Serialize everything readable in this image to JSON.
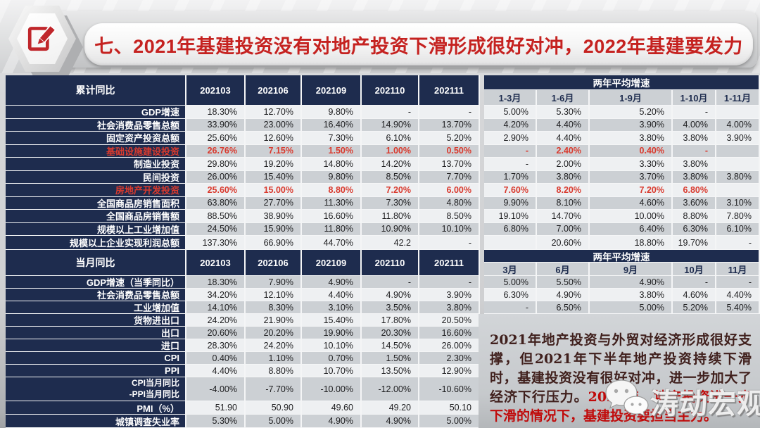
{
  "title": {
    "text": "七、2021年基建投资没有对地产投资下滑形成很好对冲，2022年基建要发力"
  },
  "colors": {
    "navy_header": "#1e2c4e",
    "row_light": "#eef0f2",
    "row_gray": "#ccd0d4",
    "highlight_red": "#d93a2e",
    "title_red": "#c52220",
    "note_dark_red": "#40201d",
    "note_bright_red": "#c00b0b"
  },
  "table_cumulative": {
    "label_header": "累计同比",
    "col_headers": [
      "202103",
      "202106",
      "202109",
      "202110",
      "202111"
    ],
    "right_group_header": "两年平均增速",
    "right_col_headers": [
      "1-3月",
      "1-6月",
      "1-9月",
      "1-10月",
      "1-11月"
    ],
    "rows": [
      {
        "label": "GDP增速",
        "red": false,
        "left": [
          "18.30%",
          "12.70%",
          "9.80%",
          "-",
          "-"
        ],
        "right": [
          "5.00%",
          "5.30%",
          "5.20%",
          "-",
          ""
        ]
      },
      {
        "label": "社会消费品零售总额",
        "red": false,
        "left": [
          "33.90%",
          "23.00%",
          "16.40%",
          "14.90%",
          "13.70%"
        ],
        "right": [
          "4.20%",
          "4.40%",
          "3.90%",
          "4.00%",
          "4.00%"
        ]
      },
      {
        "label": "固定资产投资总额",
        "red": false,
        "left": [
          "25.60%",
          "12.60%",
          "7.30%",
          "6.10%",
          "5.20%"
        ],
        "right": [
          "2.90%",
          "4.40%",
          "3.80%",
          "3.80%",
          "3.90%"
        ]
      },
      {
        "label": "基础设施建设投资",
        "red": true,
        "left": [
          "26.76%",
          "7.15%",
          "1.50%",
          "1.00%",
          "0.50%"
        ],
        "right": [
          "-",
          "2.40%",
          "0.40%",
          "-",
          ""
        ]
      },
      {
        "label": "制造业投资",
        "red": false,
        "left": [
          "29.80%",
          "19.20%",
          "14.80%",
          "14.20%",
          "13.70%"
        ],
        "right": [
          "-",
          "2.00%",
          "3.30%",
          "3.80%",
          ""
        ]
      },
      {
        "label": "民间投资",
        "red": false,
        "left": [
          "26.00%",
          "15.40%",
          "9.80%",
          "8.50%",
          "7.70%"
        ],
        "right": [
          "1.70%",
          "3.80%",
          "3.70%",
          "3.80%",
          "3.80%"
        ]
      },
      {
        "label": "房地产开发投资",
        "red": true,
        "left": [
          "25.60%",
          "15.00%",
          "8.80%",
          "7.20%",
          "6.00%"
        ],
        "right": [
          "7.60%",
          "8.20%",
          "7.20%",
          "6.80%",
          ""
        ]
      },
      {
        "label": "全国商品房销售面积",
        "red": false,
        "left": [
          "63.80%",
          "27.70%",
          "11.30%",
          "7.30%",
          "4.80%"
        ],
        "right": [
          "9.90%",
          "8.10%",
          "4.60%",
          "3.60%",
          "3.10%"
        ]
      },
      {
        "label": "全国商品房销售额",
        "red": false,
        "left": [
          "88.50%",
          "38.90%",
          "16.60%",
          "11.80%",
          "8.50%"
        ],
        "right": [
          "19.10%",
          "14.70%",
          "10.00%",
          "8.80%",
          "7.80%"
        ]
      },
      {
        "label": "规模以上工业增加值",
        "red": false,
        "left": [
          "24.50%",
          "15.90%",
          "11.80%",
          "10.90%",
          "10.10%"
        ],
        "right": [
          "6.80%",
          "7.00%",
          "6.40%",
          "6.30%",
          "6.10%"
        ]
      },
      {
        "label": "规模以上企业实现利润总额",
        "red": false,
        "left": [
          "137.30%",
          "66.90%",
          "44.70%",
          "42.2",
          "-"
        ],
        "right": [
          "",
          "20.60%",
          "18.80%",
          "19.70%",
          "-"
        ]
      }
    ]
  },
  "table_monthly": {
    "label_header": "当月同比",
    "col_headers": [
      "202103",
      "202106",
      "202109",
      "202110",
      "202111"
    ],
    "right_group_header": "两年平均增速",
    "right_col_headers": [
      "3月",
      "6月",
      "9月",
      "10月",
      "11月"
    ],
    "rows": [
      {
        "label": "GDP增速（当季同比）",
        "red": false,
        "left": [
          "18.30%",
          "7.90%",
          "4.90%",
          "-",
          "-"
        ],
        "right": [
          "5.00%",
          "5.50%",
          "4.90%",
          "-",
          "-"
        ]
      },
      {
        "label": "社会消费品零售总额",
        "red": false,
        "left": [
          "34.20%",
          "12.10%",
          "4.40%",
          "4.90%",
          "3.90%"
        ],
        "right": [
          "6.30%",
          "4.90%",
          "3.80%",
          "4.60%",
          "4.40%"
        ]
      },
      {
        "label": "工业增加值",
        "red": false,
        "left": [
          "14.10%",
          "8.30%",
          "3.10%",
          "3.50%",
          "3.80%"
        ],
        "right": [
          "-",
          "6.50%",
          "5.00%",
          "5.20%",
          "5.40%"
        ]
      },
      {
        "label": "货物进出口",
        "red": false,
        "left": [
          "24.20%",
          "21.90%",
          "15.40%",
          "17.80%",
          "20.50%"
        ],
        "right": null
      },
      {
        "label": "出口",
        "red": false,
        "left": [
          "20.60%",
          "20.20%",
          "19.90%",
          "20.30%",
          "16.60%"
        ],
        "right": null
      },
      {
        "label": "进口",
        "red": false,
        "left": [
          "28.30%",
          "24.20%",
          "10.10%",
          "14.50%",
          "26.00%"
        ],
        "right": null
      },
      {
        "label": "CPI",
        "red": false,
        "left": [
          "0.40%",
          "1.10%",
          "0.70%",
          "1.50%",
          "2.30%"
        ],
        "right": null
      },
      {
        "label": "PPI",
        "red": false,
        "left": [
          "4.40%",
          "8.80%",
          "10.70%",
          "13.50%",
          "12.90%"
        ],
        "right": null
      },
      {
        "label": "CPI当月同比",
        "label_line2": "-PPI当月同比",
        "red": false,
        "left": [
          "-4.00%",
          "-7.70%",
          "-10.00%",
          "-12.00%",
          "-10.60%"
        ],
        "right": null
      },
      {
        "label": "PMI（%）",
        "red": false,
        "left": [
          "51.90",
          "50.90",
          "49.60",
          "49.20",
          "50.10"
        ],
        "right": null
      },
      {
        "label": "城镇调查失业率",
        "red": false,
        "left": [
          "5.30%",
          "5.00%",
          "4.90%",
          "4.90%",
          "5.00%"
        ],
        "right": null
      }
    ]
  },
  "note": {
    "dark_text": "2021年地产投资与外贸对经济形成很好支撑，但2021年下半年地产投资持续下滑时，基建投资没有很好对冲，进一步加大了经济下行压力。",
    "red_text": "2022年，地产投资进一步下滑的情况下，基建投资要担当主力。"
  },
  "watermark": {
    "brand": "涛动宏观"
  }
}
